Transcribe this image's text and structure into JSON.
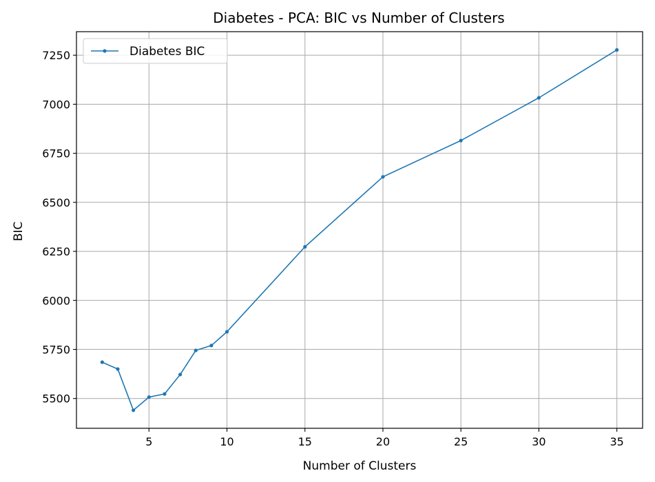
{
  "chart_data": {
    "type": "line",
    "title": "Diabetes - PCA: BIC vs Number of Clusters",
    "xlabel": "Number of Clusters",
    "ylabel": "BIC",
    "x": [
      2,
      3,
      4,
      5,
      6,
      7,
      8,
      9,
      10,
      15,
      20,
      25,
      30,
      35
    ],
    "series": [
      {
        "name": "Diabetes BIC",
        "values": [
          5685,
          5650,
          5440,
          5507,
          5523,
          5622,
          5745,
          5770,
          5840,
          6273,
          6630,
          6815,
          7033,
          7277
        ],
        "color": "#1f77b4",
        "marker": "circle"
      }
    ],
    "xlim": [
      0.35,
      36.65
    ],
    "ylim": [
      5348,
      7370
    ],
    "xticks": [
      5,
      10,
      15,
      20,
      25,
      30,
      35
    ],
    "yticks": [
      5500,
      5750,
      6000,
      6250,
      6500,
      6750,
      7000,
      7250
    ],
    "grid": true,
    "legend_position": "upper-left",
    "colors": {
      "grid": "#b0b0b0",
      "axis": "#000000",
      "background": "#ffffff"
    }
  }
}
